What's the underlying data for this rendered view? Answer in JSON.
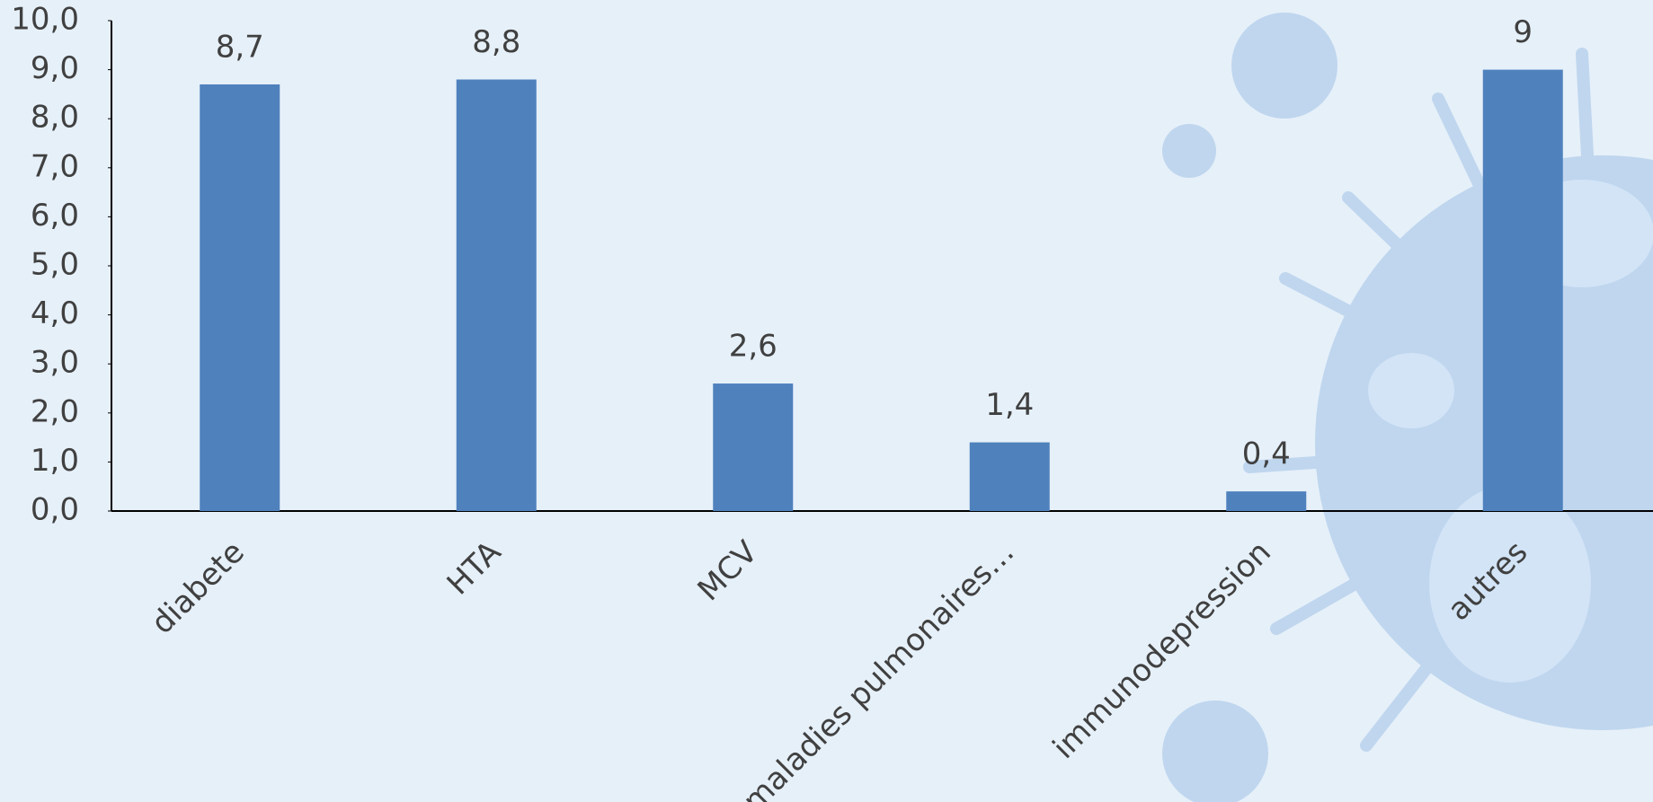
{
  "chart_data": {
    "type": "bar",
    "categories": [
      "diabete",
      "HTA",
      "MCV",
      "maladies pulmonaires…",
      "immunodepression",
      "autres"
    ],
    "values": [
      8.7,
      8.8,
      2.6,
      1.4,
      0.4,
      9
    ],
    "value_labels": [
      "8,7",
      "8,8",
      "2,6",
      "1,4",
      "0,4",
      "9"
    ],
    "color": "#4f81bd",
    "ylim": [
      0,
      10
    ],
    "yticks": [
      {
        "value": 0,
        "label": "0,0"
      },
      {
        "value": 1,
        "label": "1,0"
      },
      {
        "value": 2,
        "label": "2,0"
      },
      {
        "value": 3,
        "label": "3,0"
      },
      {
        "value": 4,
        "label": "4,0"
      },
      {
        "value": 5,
        "label": "5,0"
      },
      {
        "value": 6,
        "label": "6,0"
      },
      {
        "value": 7,
        "label": "7,0"
      },
      {
        "value": 8,
        "label": "8,0"
      },
      {
        "value": 9,
        "label": "9,0"
      },
      {
        "value": 10,
        "label": "10,0"
      }
    ],
    "grid": false
  }
}
